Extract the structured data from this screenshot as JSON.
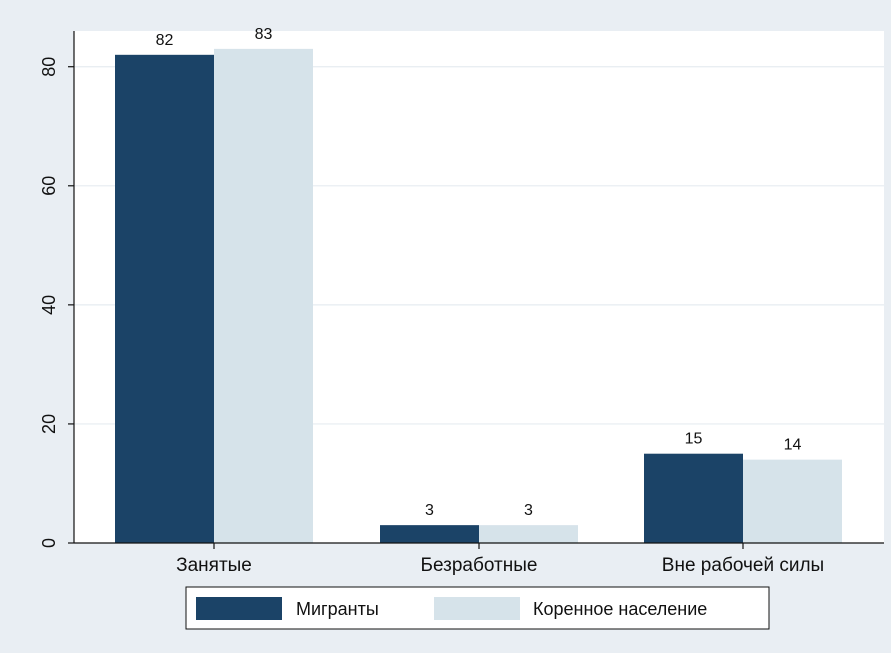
{
  "chart_data": {
    "type": "bar",
    "categories": [
      "Занятые",
      "Безработные",
      "Вне рабочей силы"
    ],
    "series": [
      {
        "name": "Мигранты",
        "values": [
          82,
          3,
          15
        ],
        "labels": [
          "82",
          "3",
          "15"
        ],
        "color": "#1b4367"
      },
      {
        "name": "Коренное население",
        "values": [
          83,
          3,
          14
        ],
        "labels": [
          "83",
          "3",
          "14"
        ],
        "color": "#d6e3ea"
      }
    ],
    "title": "",
    "xlabel": "",
    "ylabel": "",
    "ylim": [
      0,
      86
    ],
    "yticks": [
      0,
      20,
      40,
      60,
      80
    ],
    "grid": true,
    "legend_position": "bottom",
    "colors": {
      "outer_background": "#e9eef3",
      "plot_background": "#ffffff",
      "gridline": "#e6ecf0",
      "axis": "#111111"
    }
  }
}
